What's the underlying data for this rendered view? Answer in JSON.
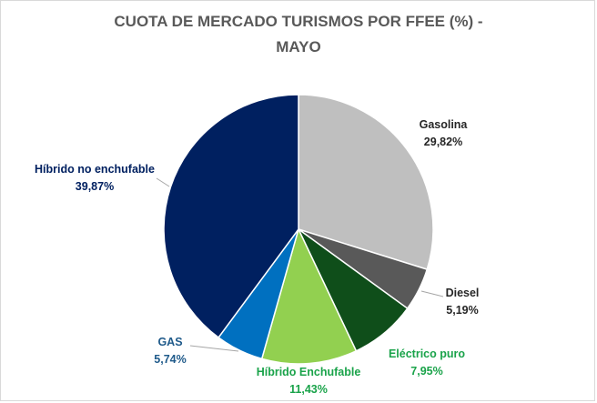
{
  "chart_data": {
    "type": "pie",
    "title": "CUOTA DE MERCADO TURISMOS POR FFEE (%)  -\nMAYO",
    "slices": [
      {
        "name": "Gasolina",
        "value": 29.82,
        "value_label": "29,82%",
        "color": "#bfbfbf",
        "label_color": "#262626"
      },
      {
        "name": "Diesel",
        "value": 5.19,
        "value_label": "5,19%",
        "color": "#595959",
        "label_color": "#262626"
      },
      {
        "name": "Eléctrico puro",
        "value": 7.95,
        "value_label": "7,95%",
        "color": "#0f4e1a",
        "label_color": "#1aa34a"
      },
      {
        "name": "Híbrido Enchufable",
        "value": 11.43,
        "value_label": "11,43%",
        "color": "#92d050",
        "label_color": "#1aa34a"
      },
      {
        "name": "GAS",
        "value": 5.74,
        "value_label": "5,74%",
        "color": "#0070c0",
        "label_color": "#1f5a8a"
      },
      {
        "name": "Híbrido no enchufable",
        "value": 39.87,
        "value_label": "39,87%",
        "color": "#002060",
        "label_color": "#002060"
      }
    ],
    "start_angle": "12 o'clock",
    "direction": "clockwise",
    "legend": "none (data labels outside slices)"
  }
}
